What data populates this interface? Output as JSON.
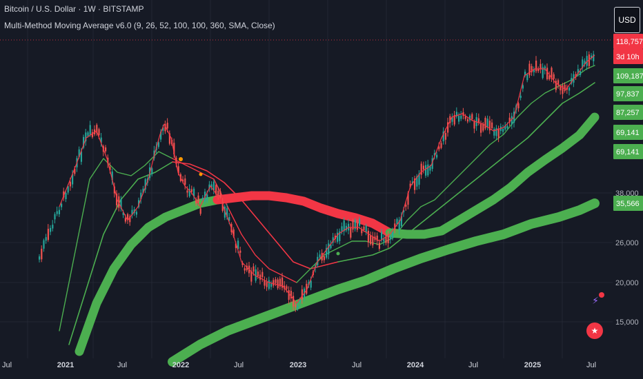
{
  "header": {
    "symbol": "Bitcoin / U.S. Dollar · 1W · BITSTAMP",
    "indicator": "Multi-Method Moving Average v6.0 (9, 26, 52, 100, 100, 360, SMA, Close)",
    "currency": "USD"
  },
  "chart_data": {
    "type": "line",
    "scale": "log",
    "grid": true,
    "x_tick_labels": [
      "Jul",
      "2021",
      "Jul",
      "2022",
      "Jul",
      "2023",
      "Jul",
      "2024",
      "Jul",
      "2025",
      "Jul"
    ],
    "y_tick_labels": [
      "38,000",
      "26,000",
      "20,000",
      "15,000"
    ],
    "price_labels": [
      {
        "text": "118,757",
        "color": "#f23645"
      },
      {
        "text": "3d 10h",
        "color": "#f23645"
      },
      {
        "text": "109,187",
        "color": "#4caf50"
      },
      {
        "text": "97,837",
        "color": "#4caf50"
      },
      {
        "text": "87,257",
        "color": "#4caf50"
      },
      {
        "text": "69,141",
        "color": "#4caf50"
      },
      {
        "text": "69,141",
        "color": "#4caf50"
      },
      {
        "text": "35,566",
        "color": "#4caf50"
      }
    ],
    "colors": {
      "up": "#26a69a",
      "down": "#ef5350",
      "ma_bull": "#4caf50",
      "ma_bear": "#f23645"
    },
    "series": [
      {
        "key": "ma9",
        "width": 1.2,
        "segments": [
          {
            "color": "#f23645",
            "x": [
              86,
              110,
              125,
              140,
              155,
              170,
              185,
              200,
              215,
              225,
              232,
              238,
              248,
              258,
              268,
              278,
              290,
              305,
              320,
              335,
              350,
              370,
              390,
              410,
              430,
              445,
              460,
              475,
              490,
              505,
              520,
              535,
              550,
              565,
              580,
              595,
              610,
              625,
              640,
              655,
              670,
              685,
              700,
              715,
              730,
              745,
              760,
              775,
              790,
              805,
              820,
              835,
              850,
              862
            ],
            "y": [
              300,
              240,
              200,
              190,
              230,
              290,
              320,
              300,
              260,
              220,
              195,
              180,
              200,
              250,
              270,
              280,
              300,
              270,
              290,
              330,
              380,
              400,
              410,
              415,
              440,
              420,
              380,
              360,
              340,
              330,
              330,
              340,
              350,
              340,
              320,
              270,
              250,
              240,
              200,
              170,
              165,
              175,
              180,
              190,
              185,
              170,
              110,
              100,
              100,
              120,
              130,
              110,
              90,
              80
            ]
          }
        ]
      },
      {
        "key": "ma26",
        "width": 1.4,
        "segments": [
          {
            "color": "#4caf50",
            "x": [
              86,
              110,
              130,
              150,
              170,
              190,
              210,
              230,
              250
            ],
            "y": [
              480,
              360,
              260,
              230,
              250,
              255,
              240,
              220,
              230
            ]
          },
          {
            "color": "#f23645",
            "x": [
              250,
              270,
              290,
              310,
              330,
              350,
              370,
              390,
              410,
              430
            ],
            "y": [
              230,
              240,
              250,
              260,
              300,
              340,
              370,
              390,
              400,
              410
            ]
          },
          {
            "color": "#4caf50",
            "x": [
              430,
              450,
              470,
              490,
              510,
              530,
              550,
              570,
              590,
              610,
              630,
              650,
              670,
              690,
              710,
              730,
              750,
              770,
              790,
              810,
              830,
              850,
              862
            ],
            "y": [
              410,
              390,
              370,
              360,
              350,
              350,
              355,
              345,
              320,
              300,
              290,
              270,
              250,
              230,
              210,
              195,
              170,
              150,
              135,
              125,
              115,
              100,
              95
            ]
          }
        ]
      },
      {
        "key": "ma52",
        "width": 1.6,
        "segments": [
          {
            "color": "#4caf50",
            "x": [
              100,
              125,
              150,
              175,
              200,
              225,
              250
            ],
            "y": [
              500,
              420,
              340,
              290,
              260,
              250,
              235
            ]
          },
          {
            "color": "#f23645",
            "x": [
              250,
              275,
              300,
              325,
              350,
              375,
              400,
              425,
              450,
              470,
              490
            ],
            "y": [
              235,
              238,
              248,
              265,
              290,
              320,
              350,
              380,
              390,
              385,
              380
            ]
          },
          {
            "color": "#4caf50",
            "x": [
              490,
              515,
              540,
              565,
              590,
              615,
              640,
              665,
              690,
              715,
              740,
              765,
              790,
              815,
              840,
              862
            ],
            "y": [
              380,
              375,
              370,
              360,
              340,
              320,
              300,
              280,
              260,
              240,
              220,
              200,
              175,
              150,
              135,
              120
            ]
          }
        ]
      },
      {
        "key": "ma100",
        "width": 13,
        "segments": [
          {
            "color": "#4caf50",
            "x": [
              115,
              140,
              165,
              190,
              215,
              240,
              265,
              290,
              315
            ],
            "y": [
              510,
              440,
              390,
              355,
              330,
              315,
              305,
              295,
              290
            ]
          },
          {
            "color": "#f23645",
            "x": [
              315,
              340,
              365,
              390,
              415,
              440,
              465,
              490,
              515,
              540,
              565
            ],
            "y": [
              290,
              287,
              284,
              284,
              287,
              292,
              302,
              310,
              316,
              324,
              338
            ]
          },
          {
            "color": "#4caf50",
            "x": [
              565,
              590,
              615,
              640,
              665,
              690,
              715,
              740,
              765,
              790,
              815,
              840,
              862
            ],
            "y": [
              338,
              340,
              340,
              335,
              320,
              305,
              290,
              272,
              250,
              232,
              215,
              196,
              170
            ]
          }
        ]
      },
      {
        "key": "ma360",
        "width": 14,
        "segments": [
          {
            "color": "#4caf50",
            "x": [
              250,
              290,
              330,
              370,
              410,
              450,
              490,
              530,
              570,
              610,
              650,
              690,
              730,
              770,
              810,
              840,
              862
            ],
            "y": [
              525,
              500,
              480,
              465,
              450,
              435,
              420,
              407,
              390,
              375,
              362,
              350,
              340,
              325,
              315,
              305,
              295
            ]
          }
        ]
      }
    ]
  }
}
